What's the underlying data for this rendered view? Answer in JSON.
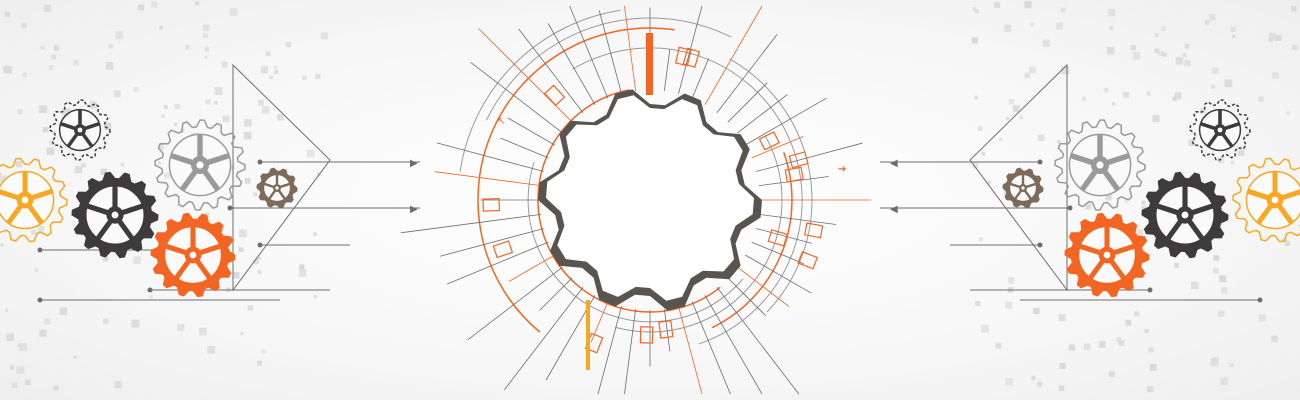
{
  "colors": {
    "orange": "#f26522",
    "light_orange": "#f7a823",
    "dark_gear": "#3d3b3c",
    "brown_gear": "#7d6a5a",
    "outline_gray": "#9a9a9a",
    "line_gray": "#6d6d6d",
    "dot_gray": "#d9d9d9",
    "center_white": "#ffffff"
  },
  "icons": [
    "gear-icon",
    "arrow-icon",
    "circuit-line",
    "center-cog"
  ]
}
